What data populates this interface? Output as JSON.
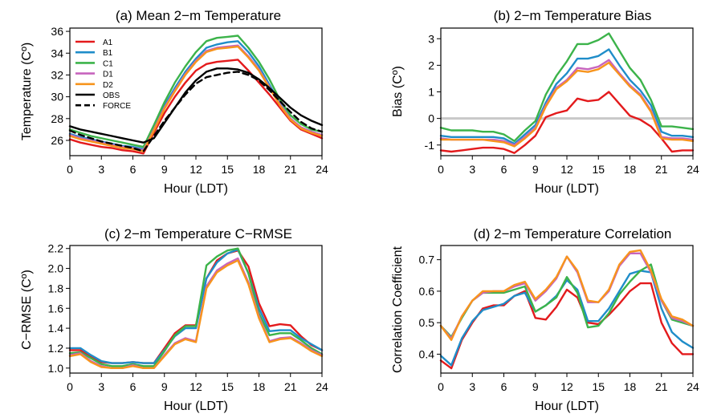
{
  "colors": {
    "A1": "#e31a1c",
    "B1": "#1f8dc9",
    "C1": "#3cb34a",
    "D1": "#c764bd",
    "D2": "#f7941d",
    "OBS": "#000000",
    "FORCE": "#000000",
    "zero": "#c8c8c8"
  },
  "chart_data": [
    {
      "type": "line",
      "title": "(a) Mean 2−m Temperature",
      "xlabel": "Hour (LDT)",
      "ylabel": "Temperature (Cº)",
      "xlim": [
        0,
        24
      ],
      "ylim": [
        24.6,
        36.3
      ],
      "xticks": [
        0,
        3,
        6,
        9,
        12,
        15,
        18,
        21,
        24
      ],
      "yticks": [
        26,
        28,
        30,
        32,
        34,
        36
      ],
      "legend": "top-left",
      "x": [
        0,
        1,
        2,
        3,
        4,
        5,
        6,
        7,
        8,
        9,
        10,
        11,
        12,
        13,
        14,
        15,
        16,
        17,
        18,
        19,
        20,
        21,
        22,
        23,
        24
      ],
      "series": [
        {
          "name": "A1",
          "color": "#e31a1c",
          "values": [
            26.1,
            25.8,
            25.6,
            25.4,
            25.3,
            25.1,
            25.0,
            24.8,
            26.7,
            28.5,
            30.0,
            31.3,
            32.4,
            33.0,
            33.2,
            33.3,
            33.4,
            32.4,
            31.3,
            30.2,
            29.0,
            27.8,
            27.0,
            26.6,
            26.2
          ]
        },
        {
          "name": "B1",
          "color": "#1f8dc9",
          "values": [
            26.6,
            26.3,
            26.1,
            25.9,
            25.7,
            25.5,
            25.4,
            25.2,
            27.1,
            29.2,
            30.8,
            32.3,
            33.5,
            34.5,
            34.8,
            35.0,
            35.1,
            34.1,
            32.8,
            31.1,
            29.4,
            28.0,
            27.2,
            26.8,
            26.5
          ]
        },
        {
          "name": "C1",
          "color": "#3cb34a",
          "values": [
            27.0,
            26.7,
            26.4,
            26.2,
            26.0,
            25.8,
            25.6,
            25.4,
            27.4,
            29.5,
            31.3,
            32.8,
            34.1,
            35.1,
            35.4,
            35.5,
            35.6,
            34.5,
            33.2,
            31.6,
            29.7,
            28.3,
            27.5,
            27.0,
            26.8
          ]
        },
        {
          "name": "D1",
          "color": "#c764bd",
          "values": [
            26.5,
            26.2,
            26.0,
            25.8,
            25.6,
            25.4,
            25.3,
            25.1,
            27.0,
            29.0,
            30.6,
            32.1,
            33.3,
            34.2,
            34.5,
            34.6,
            34.7,
            33.7,
            32.5,
            30.9,
            29.3,
            28.0,
            27.2,
            26.8,
            26.5
          ]
        },
        {
          "name": "D2",
          "color": "#f7941d",
          "values": [
            26.4,
            26.1,
            25.9,
            25.7,
            25.5,
            25.3,
            25.2,
            25.0,
            26.9,
            28.9,
            30.5,
            32.0,
            33.2,
            34.1,
            34.4,
            34.5,
            34.6,
            33.6,
            32.4,
            30.8,
            29.2,
            27.9,
            27.1,
            26.7,
            26.4
          ]
        },
        {
          "name": "OBS",
          "color": "#000000",
          "values": [
            27.3,
            27.0,
            26.8,
            26.6,
            26.4,
            26.2,
            26.0,
            25.8,
            26.2,
            27.6,
            29.0,
            30.4,
            31.5,
            32.3,
            32.6,
            32.6,
            32.5,
            32.2,
            31.6,
            30.8,
            29.9,
            29.0,
            28.3,
            27.8,
            27.4
          ]
        },
        {
          "name": "FORCE",
          "color": "#000000",
          "dashed": true,
          "values": [
            26.9,
            26.5,
            26.2,
            25.9,
            25.7,
            25.5,
            25.3,
            25.0,
            26.4,
            27.8,
            29.0,
            30.2,
            31.2,
            31.8,
            32.0,
            32.2,
            32.3,
            32.0,
            31.5,
            30.6,
            29.6,
            28.6,
            27.7,
            27.1,
            26.8
          ]
        }
      ]
    },
    {
      "type": "line",
      "title": "(b) 2−m Temperature Bias",
      "xlabel": "Hour (LDT)",
      "ylabel": "Bias (Cº)",
      "xlim": [
        0,
        24
      ],
      "ylim": [
        -1.4,
        3.4
      ],
      "xticks": [
        0,
        3,
        6,
        9,
        12,
        15,
        18,
        21,
        24
      ],
      "yticks": [
        -1,
        0,
        1,
        2,
        3
      ],
      "zero_line": 0,
      "x": [
        0,
        1,
        2,
        3,
        4,
        5,
        6,
        7,
        8,
        9,
        10,
        11,
        12,
        13,
        14,
        15,
        16,
        17,
        18,
        19,
        20,
        21,
        22,
        23,
        24
      ],
      "series": [
        {
          "name": "A1",
          "color": "#e31a1c",
          "values": [
            -1.2,
            -1.25,
            -1.2,
            -1.15,
            -1.1,
            -1.1,
            -1.15,
            -1.3,
            -1.0,
            -0.65,
            0.05,
            0.2,
            0.3,
            0.75,
            0.65,
            0.7,
            1.0,
            0.55,
            0.1,
            -0.05,
            -0.3,
            -0.75,
            -1.25,
            -1.2,
            -1.2
          ]
        },
        {
          "name": "B1",
          "color": "#1f8dc9",
          "values": [
            -0.65,
            -0.7,
            -0.7,
            -0.7,
            -0.7,
            -0.7,
            -0.75,
            -0.95,
            -0.6,
            -0.25,
            0.6,
            1.3,
            1.7,
            2.25,
            2.25,
            2.35,
            2.6,
            2.0,
            1.45,
            1.05,
            0.5,
            -0.5,
            -0.65,
            -0.65,
            -0.7
          ]
        },
        {
          "name": "C1",
          "color": "#3cb34a",
          "values": [
            -0.35,
            -0.45,
            -0.45,
            -0.45,
            -0.5,
            -0.5,
            -0.6,
            -0.85,
            -0.45,
            -0.1,
            0.9,
            1.6,
            2.15,
            2.8,
            2.8,
            2.95,
            3.2,
            2.55,
            1.9,
            1.45,
            0.7,
            -0.3,
            -0.3,
            -0.35,
            -0.4
          ]
        },
        {
          "name": "D1",
          "color": "#c764bd",
          "values": [
            -0.75,
            -0.8,
            -0.8,
            -0.8,
            -0.8,
            -0.8,
            -0.85,
            -1.0,
            -0.7,
            -0.35,
            0.5,
            1.15,
            1.45,
            1.9,
            1.85,
            1.95,
            2.2,
            1.7,
            1.25,
            0.9,
            0.3,
            -0.7,
            -0.75,
            -0.75,
            -0.8
          ]
        },
        {
          "name": "D2",
          "color": "#f7941d",
          "values": [
            -0.8,
            -0.8,
            -0.8,
            -0.8,
            -0.8,
            -0.85,
            -0.9,
            -1.05,
            -0.75,
            -0.4,
            0.45,
            1.1,
            1.4,
            1.8,
            1.75,
            1.85,
            2.1,
            1.65,
            1.2,
            0.85,
            0.25,
            -0.75,
            -0.8,
            -0.8,
            -0.85
          ]
        }
      ]
    },
    {
      "type": "line",
      "title": "(c) 2−m Temperature C−RMSE",
      "xlabel": "Hour (LDT)",
      "ylabel": "C−RMSE (Cº)",
      "xlim": [
        0,
        24
      ],
      "ylim": [
        0.95,
        2.23
      ],
      "xticks": [
        0,
        3,
        6,
        9,
        12,
        15,
        18,
        21,
        24
      ],
      "yticks": [
        1.0,
        1.2,
        1.4,
        1.6,
        1.8,
        2.0,
        2.2
      ],
      "ytick_labels": [
        "1.0",
        "1.2",
        "1.4",
        "1.6",
        "1.8",
        "2.0",
        "2.2"
      ],
      "x": [
        0,
        1,
        2,
        3,
        4,
        5,
        6,
        7,
        8,
        9,
        10,
        11,
        12,
        13,
        14,
        15,
        16,
        17,
        18,
        19,
        20,
        21,
        22,
        23,
        24
      ],
      "series": [
        {
          "name": "A1",
          "color": "#e31a1c",
          "values": [
            1.18,
            1.18,
            1.12,
            1.06,
            1.05,
            1.05,
            1.06,
            1.05,
            1.05,
            1.2,
            1.35,
            1.43,
            1.43,
            1.9,
            2.08,
            2.15,
            2.18,
            2.02,
            1.65,
            1.42,
            1.44,
            1.43,
            1.32,
            1.23,
            1.18
          ]
        },
        {
          "name": "B1",
          "color": "#1f8dc9",
          "values": [
            1.2,
            1.2,
            1.13,
            1.07,
            1.05,
            1.05,
            1.06,
            1.05,
            1.05,
            1.18,
            1.32,
            1.4,
            1.4,
            1.9,
            2.06,
            2.15,
            2.19,
            1.95,
            1.6,
            1.37,
            1.38,
            1.38,
            1.3,
            1.24,
            1.18
          ]
        },
        {
          "name": "C1",
          "color": "#3cb34a",
          "values": [
            1.15,
            1.16,
            1.1,
            1.04,
            1.02,
            1.02,
            1.04,
            1.02,
            1.02,
            1.17,
            1.33,
            1.42,
            1.42,
            2.03,
            2.12,
            2.18,
            2.2,
            1.95,
            1.55,
            1.33,
            1.35,
            1.35,
            1.28,
            1.2,
            1.14
          ]
        },
        {
          "name": "D1",
          "color": "#c764bd",
          "values": [
            1.13,
            1.15,
            1.07,
            1.02,
            1.0,
            1.0,
            1.03,
            1.0,
            1.0,
            1.13,
            1.25,
            1.3,
            1.27,
            1.82,
            1.98,
            2.05,
            2.1,
            1.86,
            1.52,
            1.27,
            1.3,
            1.31,
            1.25,
            1.18,
            1.13
          ]
        },
        {
          "name": "D2",
          "color": "#f7941d",
          "values": [
            1.12,
            1.14,
            1.06,
            1.01,
            1.0,
            1.0,
            1.02,
            1.0,
            1.0,
            1.12,
            1.24,
            1.29,
            1.26,
            1.8,
            1.96,
            2.03,
            2.08,
            1.84,
            1.5,
            1.26,
            1.29,
            1.3,
            1.24,
            1.17,
            1.12
          ]
        }
      ]
    },
    {
      "type": "line",
      "title": "(d) 2−m Temperature Correlation",
      "xlabel": "Hour (LDT)",
      "ylabel": "Correlation Coefficient",
      "xlim": [
        0,
        24
      ],
      "ylim": [
        0.34,
        0.745
      ],
      "xticks": [
        0,
        3,
        6,
        9,
        12,
        15,
        18,
        21,
        24
      ],
      "yticks": [
        0.4,
        0.5,
        0.6,
        0.7
      ],
      "x": [
        0,
        1,
        2,
        3,
        4,
        5,
        6,
        7,
        8,
        9,
        10,
        11,
        12,
        13,
        14,
        15,
        16,
        17,
        18,
        19,
        20,
        21,
        22,
        23,
        24
      ],
      "series": [
        {
          "name": "A1",
          "color": "#e31a1c",
          "values": [
            0.38,
            0.355,
            0.445,
            0.5,
            0.545,
            0.555,
            0.555,
            0.585,
            0.6,
            0.515,
            0.51,
            0.55,
            0.605,
            0.58,
            0.5,
            0.495,
            0.525,
            0.56,
            0.6,
            0.625,
            0.625,
            0.5,
            0.435,
            0.4,
            0.4
          ]
        },
        {
          "name": "B1",
          "color": "#1f8dc9",
          "values": [
            0.395,
            0.365,
            0.45,
            0.505,
            0.54,
            0.55,
            0.56,
            0.585,
            0.595,
            0.535,
            0.555,
            0.585,
            0.635,
            0.605,
            0.505,
            0.505,
            0.545,
            0.6,
            0.655,
            0.665,
            0.66,
            0.545,
            0.47,
            0.44,
            0.42
          ]
        },
        {
          "name": "C1",
          "color": "#3cb34a",
          "values": [
            0.49,
            0.455,
            0.515,
            0.57,
            0.595,
            0.595,
            0.595,
            0.605,
            0.615,
            0.535,
            0.555,
            0.58,
            0.645,
            0.595,
            0.485,
            0.49,
            0.53,
            0.59,
            0.63,
            0.665,
            0.685,
            0.57,
            0.51,
            0.5,
            0.49
          ]
        },
        {
          "name": "D1",
          "color": "#c764bd",
          "values": [
            0.49,
            0.45,
            0.52,
            0.57,
            0.595,
            0.6,
            0.6,
            0.615,
            0.625,
            0.57,
            0.6,
            0.64,
            0.71,
            0.66,
            0.565,
            0.565,
            0.6,
            0.68,
            0.72,
            0.72,
            0.66,
            0.57,
            0.515,
            0.505,
            0.49
          ]
        },
        {
          "name": "D2",
          "color": "#f7941d",
          "values": [
            0.49,
            0.445,
            0.52,
            0.57,
            0.6,
            0.6,
            0.6,
            0.62,
            0.63,
            0.575,
            0.605,
            0.645,
            0.71,
            0.665,
            0.57,
            0.565,
            0.605,
            0.685,
            0.725,
            0.73,
            0.665,
            0.575,
            0.52,
            0.51,
            0.49
          ]
        }
      ]
    }
  ]
}
